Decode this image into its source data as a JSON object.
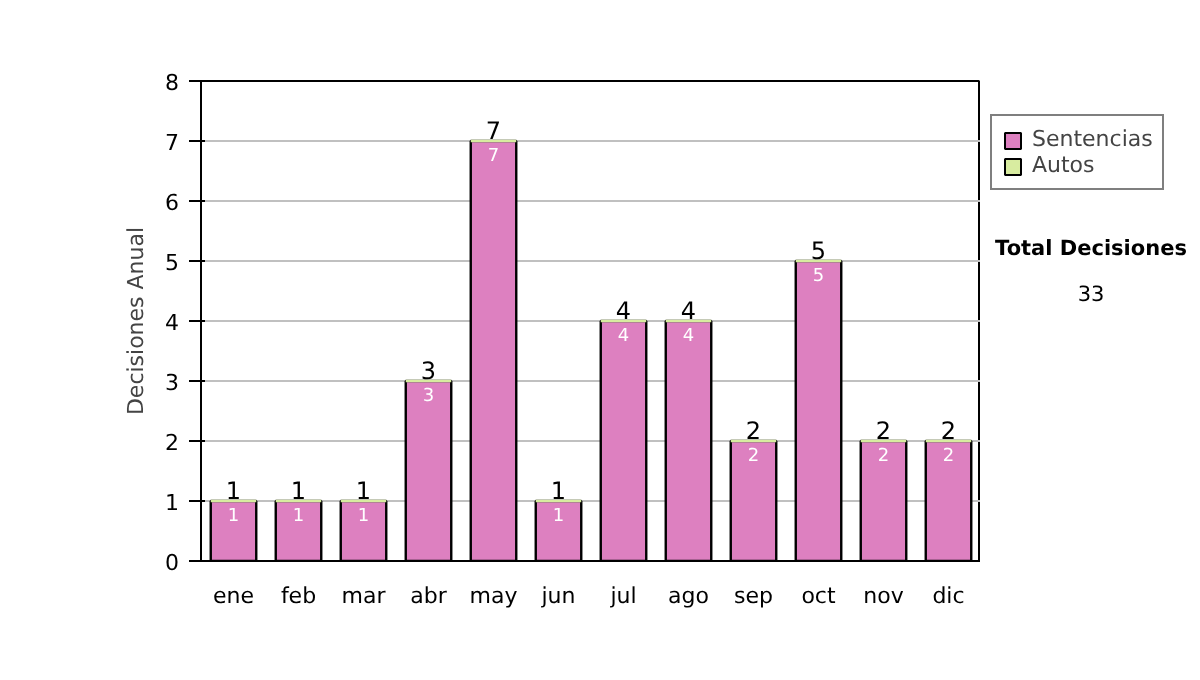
{
  "chart_data": {
    "type": "bar",
    "stacked": true,
    "ylabel": "Decisiones Anual",
    "categories": [
      "ene",
      "feb",
      "mar",
      "abr",
      "may",
      "jun",
      "jul",
      "ago",
      "sep",
      "oct",
      "nov",
      "dic"
    ],
    "series": [
      {
        "name": "Sentencias",
        "color": "#dd80c0",
        "values": [
          1,
          1,
          1,
          3,
          7,
          1,
          4,
          4,
          2,
          5,
          2,
          2
        ],
        "value_labels": [
          "1",
          "1",
          "1",
          "3",
          "7",
          "1",
          "4",
          "4",
          "2",
          "5",
          "2",
          "2"
        ]
      },
      {
        "name": "Autos",
        "color": "#d8eca0",
        "values": [
          0,
          0,
          0,
          0,
          0,
          0,
          0,
          0,
          0,
          0,
          0,
          0
        ]
      }
    ],
    "totals": [
      "1",
      "1",
      "1",
      "3",
      "7",
      "1",
      "4",
      "4",
      "2",
      "5",
      "2",
      "2"
    ],
    "ylim": [
      0,
      8
    ],
    "yticks": [
      0,
      1,
      2,
      3,
      4,
      5,
      6,
      7,
      8
    ],
    "grid": "y",
    "legend": "right",
    "annotations": [
      "Total Decisiones",
      "33"
    ]
  }
}
